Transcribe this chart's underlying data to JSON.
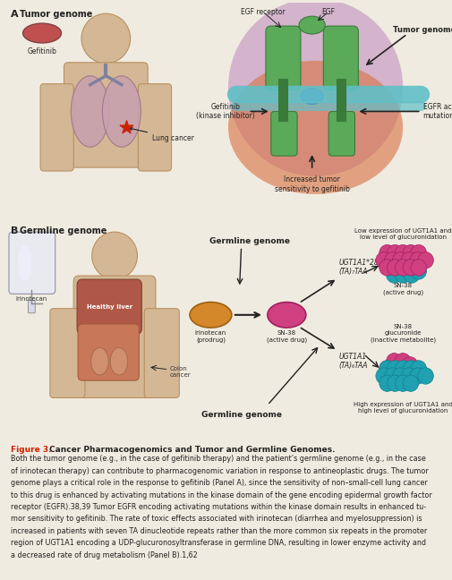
{
  "bg_color": "#f0ebe0",
  "panel_a_bg": "#ddd5c0",
  "panel_b_bg": "#ddd5c0",
  "caption_bg": "#f5f0e5",
  "border_color": "#999999",
  "caption_red": "#cc2200",
  "skin_color": "#d4b896",
  "skin_edge": "#b89060",
  "lung_color": "#c8a0b0",
  "lung_edge": "#a07080",
  "liver_color": "#b05040",
  "liver_edge": "#804030",
  "gut_color": "#c87858",
  "gut_edge": "#a05838",
  "green_rec": "#5aaa5a",
  "green_edge": "#3a7a3a",
  "purple_bg": "#c090c0",
  "orange_bg": "#e8902a",
  "membrane_color": "#60c0c8",
  "blue_site": "#4060c0",
  "irinotecan_color": "#d4882a",
  "irinotecan_edge": "#a06010",
  "sn38_color": "#d04080",
  "sn38_edge": "#a02060",
  "teal_color": "#20a0b0",
  "teal_edge": "#108090",
  "pill_color": "#c05050",
  "pill_edge": "#804040",
  "arrow_color": "#111111",
  "caption_title_bold": "Cancer Pharmacogenomics and Tumor and Germline Genomes.",
  "caption_body_line1": "Both the tumor genome (e.g., in the case of gefitinib therapy) and the patient’s germline genome (e.g., in the case",
  "caption_body_line2": "of irinotecan therapy) can contribute to pharmacogenomic variation in response to antineoplastic drugs. The tumor",
  "caption_body_line3": "genome plays a critical role in the response to gefitinib (Panel A), since the sensitivity of non–small-cell lung cancer",
  "caption_body_line4": "to this drug is enhanced by activating mutations in the kinase domain of the gene encoding epidermal growth factor",
  "caption_body_line5": "receptor (EGFR).38,39 Tumor EGFR encoding activating mutations within the kinase domain results in enhanced tu-",
  "caption_body_line6": "mor sensitivity to gefitinib. The rate of toxic effects associated with irinotecan (diarrhea and myelosuppression) is",
  "caption_body_line7": "increased in patients with seven TA dinucleotide repeats rather than the more common six repeats in the promoter",
  "caption_body_line8": "region of UGT1A1 encoding a UDP-glucuronosyltransferase in germline DNA, resulting in lower enzyme activity and",
  "caption_body_line9": "a decreased rate of drug metabolism (Panel B).1,62"
}
